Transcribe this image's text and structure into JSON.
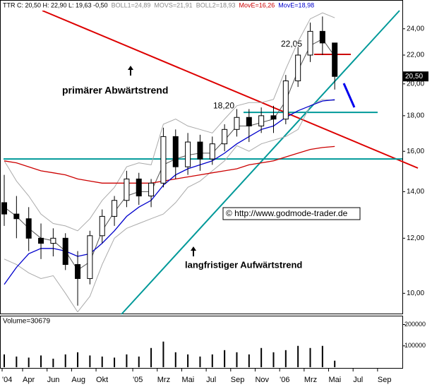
{
  "chart_data": {
    "type": "candlestick",
    "header": [
      {
        "text": "TTR C: 20,50 H: 22,90 L: 19,63 -0,50",
        "color": "#000000"
      },
      {
        "text": "BOLL1=24,89",
        "color": "#888888"
      },
      {
        "text": "MOVS=21,91",
        "color": "#888888"
      },
      {
        "text": "BOLL2=18,93",
        "color": "#888888"
      },
      {
        "text": "MovE=16,26",
        "color": "#cc0000"
      },
      {
        "text": "MovE=18,98",
        "color": "#0000cc"
      }
    ],
    "categories": [
      "'04",
      null,
      null,
      "Apr",
      null,
      "Jun",
      null,
      "Aug",
      null,
      "Okt",
      null,
      null,
      "'05",
      null,
      "Mrz",
      null,
      "Mai",
      null,
      "Jul",
      null,
      "Sep",
      null,
      "Nov",
      null,
      "'06",
      null,
      "Mrz",
      null,
      "Mai",
      null,
      "Jul",
      null,
      "Sep"
    ],
    "open": [
      null,
      13.5,
      13.0,
      12.8,
      12.0,
      11.8,
      12.0,
      11.0,
      10.5,
      12.1,
      12.9,
      13.6,
      14.6,
      13.8,
      14.4,
      16.8,
      15.2,
      16.5,
      15.6,
      16.4,
      17.2,
      17.9,
      17.4,
      18.0,
      17.8,
      20.2,
      22.0,
      23.8,
      22.9,
      null,
      null,
      null,
      null
    ],
    "high": [
      null,
      14.8,
      13.8,
      13.3,
      12.6,
      12.4,
      12.2,
      11.5,
      12.3,
      13.2,
      13.8,
      15.0,
      14.9,
      14.6,
      17.3,
      17.2,
      17.0,
      16.9,
      16.8,
      17.5,
      18.4,
      18.4,
      18.5,
      18.6,
      20.6,
      22.6,
      24.5,
      25.0,
      22.9,
      null,
      null,
      null,
      null
    ],
    "low": [
      null,
      12.5,
      12.0,
      11.5,
      11.2,
      11.3,
      10.8,
      9.6,
      10.3,
      11.8,
      12.5,
      13.3,
      13.4,
      13.3,
      14.2,
      14.6,
      14.8,
      15.0,
      15.3,
      16.0,
      16.8,
      16.5,
      17.0,
      17.0,
      17.5,
      19.8,
      21.5,
      22.0,
      19.63,
      null,
      null,
      null,
      null
    ],
    "close": [
      null,
      13.0,
      12.8,
      12.0,
      11.8,
      12.0,
      11.0,
      10.5,
      12.1,
      12.9,
      13.6,
      14.6,
      13.8,
      14.4,
      16.8,
      15.2,
      16.5,
      15.6,
      16.4,
      17.2,
      17.9,
      17.4,
      18.0,
      17.8,
      20.2,
      22.0,
      23.8,
      22.9,
      20.5,
      null,
      null,
      null,
      null
    ],
    "series": [
      {
        "name": "BOLL1",
        "color": "#aaaaaa",
        "values": [
          null,
          15.5,
          14.5,
          13.8,
          13.0,
          12.6,
          12.5,
          12.3,
          12.8,
          13.6,
          14.2,
          15.2,
          15.4,
          15.3,
          17.5,
          17.8,
          17.4,
          17.2,
          17.0,
          17.8,
          18.6,
          18.8,
          18.8,
          19.0,
          21.0,
          23.0,
          24.8,
          25.3,
          24.89,
          null,
          null,
          null,
          null
        ]
      },
      {
        "name": "BOLL2",
        "color": "#aaaaaa",
        "values": [
          null,
          11.2,
          11.0,
          10.7,
          10.5,
          10.6,
          10.0,
          9.4,
          9.9,
          11.0,
          12.0,
          12.4,
          12.6,
          12.8,
          13.0,
          13.5,
          14.2,
          14.5,
          15.0,
          15.5,
          16.3,
          16.0,
          16.4,
          16.6,
          16.8,
          17.2,
          18.6,
          19.0,
          18.93,
          null,
          null,
          null,
          null
        ]
      },
      {
        "name": "MOVS",
        "color": "#555555",
        "values": [
          null,
          13.3,
          12.9,
          12.4,
          12.0,
          11.9,
          11.5,
          10.8,
          11.1,
          12.3,
          13.1,
          13.8,
          14.0,
          14.0,
          15.3,
          15.6,
          15.8,
          15.9,
          15.9,
          16.6,
          17.4,
          17.4,
          17.6,
          17.8,
          18.9,
          20.9,
          22.7,
          23.2,
          21.91,
          null,
          null,
          null,
          null
        ]
      },
      {
        "name": "MovE",
        "color": "#cc0000",
        "values": [
          null,
          15.5,
          15.4,
          15.2,
          15.0,
          14.9,
          14.8,
          14.6,
          14.5,
          14.4,
          14.4,
          14.4,
          14.4,
          14.4,
          14.5,
          14.6,
          14.7,
          14.8,
          14.9,
          15.0,
          15.1,
          15.3,
          15.4,
          15.5,
          15.7,
          15.9,
          16.1,
          16.2,
          16.26,
          null,
          null,
          null,
          null
        ]
      },
      {
        "name": "MovE",
        "color": "#0000cc",
        "values": [
          null,
          10.3,
          10.9,
          11.4,
          11.6,
          11.6,
          11.5,
          11.3,
          11.4,
          11.8,
          12.3,
          12.9,
          13.3,
          13.6,
          14.3,
          14.8,
          15.1,
          15.3,
          15.5,
          15.9,
          16.4,
          16.8,
          17.2,
          17.4,
          17.9,
          18.3,
          18.6,
          18.9,
          18.98,
          null,
          null,
          null,
          null
        ]
      }
    ],
    "log_scale": true,
    "ylim": [
      9.33,
      26.4
    ],
    "yticks": [
      {
        "value": 10,
        "label": "10,00"
      },
      {
        "value": 12,
        "label": "12,00"
      },
      {
        "value": 14,
        "label": "14,00"
      },
      {
        "value": 16,
        "label": "16,00"
      },
      {
        "value": 18,
        "label": "18,00"
      },
      {
        "value": 20,
        "label": "20,00"
      },
      {
        "value": 22,
        "label": "22,00"
      },
      {
        "value": 24,
        "label": "24,00"
      }
    ],
    "last_price": {
      "value": 20.5,
      "label": "20,50"
    },
    "levels": [
      {
        "value": 15.6,
        "color": "#009999"
      },
      {
        "value": 18.2,
        "label": "18,20",
        "color": "#009999"
      },
      {
        "value": 22.05,
        "label": "22,05",
        "color": "#cc0000"
      }
    ],
    "annotations": [
      "primärer Abwärtstrend",
      "langfristiger Aufwärtstrend",
      "© http://www.godmode-trader.de"
    ],
    "volume": {
      "label": "Volume=30679",
      "values": [
        null,
        60000,
        50000,
        45000,
        55000,
        40000,
        60000,
        70000,
        55000,
        50000,
        45000,
        60000,
        50000,
        90000,
        120000,
        70000,
        60000,
        50000,
        60000,
        80000,
        70000,
        60000,
        90000,
        70000,
        80000,
        100000,
        90000,
        100000,
        30679,
        null,
        null,
        null,
        null
      ],
      "ylim": [
        0,
        238000
      ],
      "yticks": [
        100000,
        200000
      ]
    }
  }
}
